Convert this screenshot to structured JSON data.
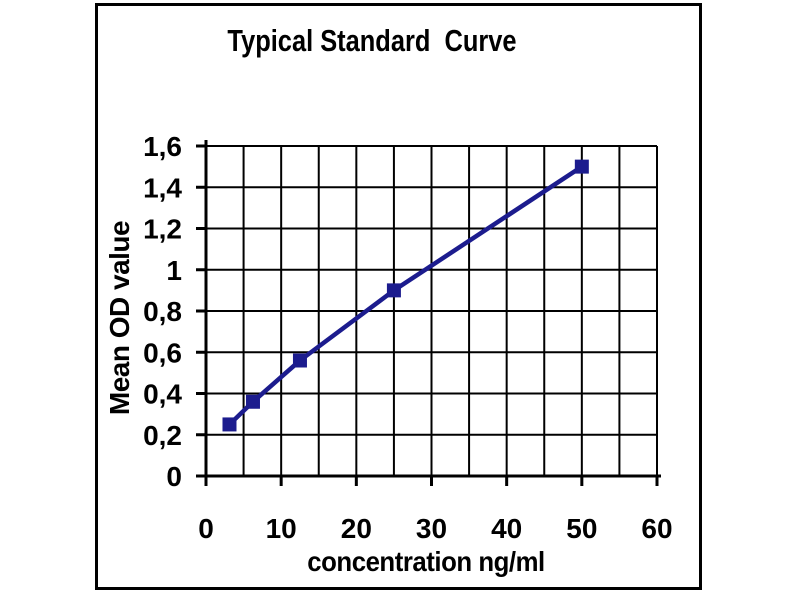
{
  "chart_data": {
    "type": "line",
    "title": "Typical Standard  Curve",
    "xlabel": "concentration ng/ml",
    "ylabel": "Mean OD value",
    "x": [
      3.125,
      6.25,
      12.5,
      25,
      50
    ],
    "values": [
      0.25,
      0.36,
      0.56,
      0.9,
      1.5
    ],
    "xlim": [
      0,
      60
    ],
    "ylim": [
      0,
      1.6
    ],
    "x_grid_step": 5,
    "y_grid_step": 0.2,
    "x_tick_step": 10,
    "y_tick_step": 0.2,
    "x_tick_labels": [
      "0",
      "10",
      "20",
      "30",
      "40",
      "50",
      "60"
    ],
    "y_tick_labels": [
      "0",
      "0,2",
      "0,4",
      "0,6",
      "0,8",
      "1",
      "1,2",
      "1,4",
      "1,6"
    ],
    "decimal_separator": ",",
    "grid": true,
    "legend_position": "none",
    "marker": "square",
    "line_color": "#1c1c8e",
    "axis_color": "#000000",
    "text_color": "#000000",
    "background_color": "#ffffff"
  }
}
